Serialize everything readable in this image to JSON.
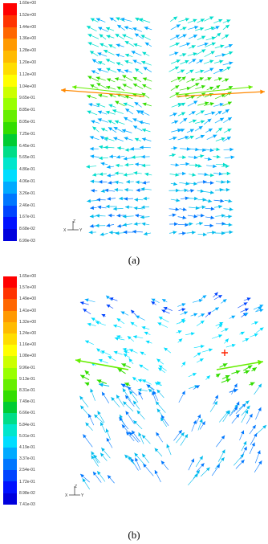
{
  "figures": [
    {
      "caption": "(a)",
      "colorbar_ticks": [
        "1.60e+00",
        "1.52e+00",
        "1.44e+00",
        "1.36e+00",
        "1.28e+00",
        "1.20e+00",
        "1.12e+00",
        "1.04e+00",
        "9.65e-01",
        "8.85e-01",
        "8.05e-01",
        "7.25e-01",
        "6.45e-01",
        "5.65e-01",
        "4.86e-01",
        "4.06e-01",
        "3.26e-01",
        "2.46e-01",
        "1.67e-01",
        "8.68e-02",
        "6.99e-03"
      ],
      "axis_labels": {
        "z": "Z",
        "x": "X",
        "y": "Y"
      }
    },
    {
      "caption": "(b)",
      "colorbar_ticks": [
        "1.65e+00",
        "1.57e+00",
        "1.49e+00",
        "1.41e+00",
        "1.32e+00",
        "1.24e+00",
        "1.16e+00",
        "1.08e+00",
        "9.96e-01",
        "9.13e-01",
        "8.31e-01",
        "7.49e-01",
        "6.66e-01",
        "5.84e-01",
        "5.01e-01",
        "4.19e-01",
        "3.37e-01",
        "2.54e-01",
        "1.72e-01",
        "8.98e-02",
        "7.41e-03"
      ],
      "axis_labels": {
        "z": "Z",
        "x": "X",
        "y": "Y"
      }
    }
  ],
  "colormap": [
    "#ff0000",
    "#ff3300",
    "#ff6600",
    "#ff9900",
    "#ffbb00",
    "#ffdd00",
    "#ffff00",
    "#ccff00",
    "#99ff00",
    "#66ee00",
    "#33dd00",
    "#00cc33",
    "#00dd88",
    "#00e6cc",
    "#00ddff",
    "#00aaff",
    "#0077ff",
    "#0044ff",
    "#0011ff",
    "#0000dd"
  ]
}
